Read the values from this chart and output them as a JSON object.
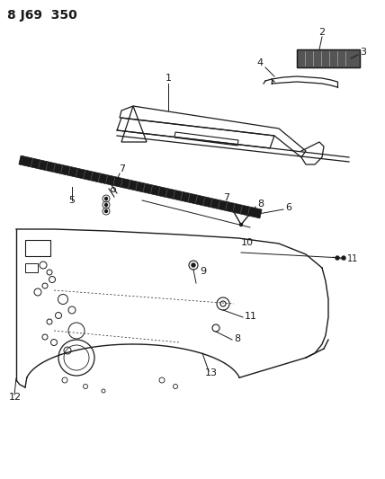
{
  "title": "8 J69  350",
  "bg_color": "#ffffff",
  "line_color": "#1a1a1a",
  "fig_width": 4.28,
  "fig_height": 5.33,
  "dpi": 100
}
